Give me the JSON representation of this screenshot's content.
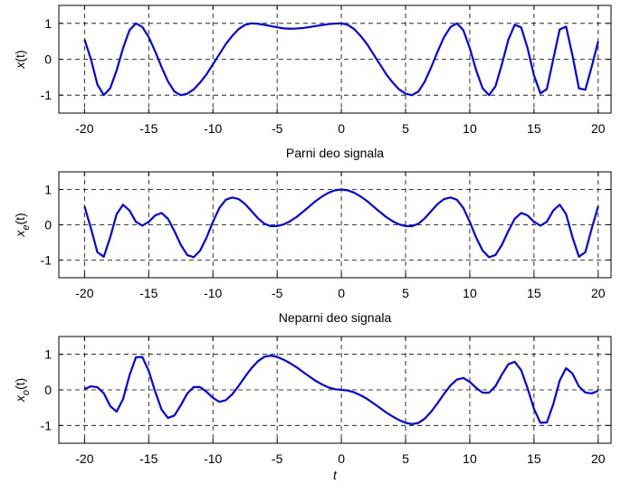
{
  "chart_data": [
    {
      "type": "line",
      "ylabel": {
        "text": "x",
        "suffix": "(t)"
      },
      "x": [
        -20,
        -19.5,
        -19,
        -18.5,
        -18,
        -17.5,
        -17,
        -16.5,
        -16,
        -15.5,
        -15,
        -14.5,
        -14,
        -13.5,
        -13,
        -12.5,
        -12,
        -11.5,
        -11,
        -10.5,
        -10,
        -9.5,
        -9,
        -8.5,
        -8,
        -7.5,
        -7,
        -6.5,
        -6,
        -5.5,
        -5,
        -4.5,
        -4,
        -3.5,
        -3,
        -2.5,
        -2,
        -1.5,
        -1,
        -0.5,
        0,
        0.5,
        1,
        1.5,
        2,
        2.5,
        3,
        3.5,
        4,
        4.5,
        5,
        5.5,
        6,
        6.5,
        7,
        7.5,
        8,
        8.5,
        9,
        9.5,
        10,
        10.5,
        11,
        11.5,
        12,
        12.5,
        13,
        13.5,
        14,
        14.5,
        15,
        15.5,
        16,
        16.5,
        17,
        17.5,
        18,
        18.5,
        19,
        19.5,
        20
      ],
      "series": [
        {
          "color": "#0000ff",
          "values": [
            0.55,
            0,
            -0.7,
            -1,
            -0.81,
            -0.31,
            0.31,
            0.81,
            1,
            0.9,
            0.62,
            0.22,
            -0.22,
            -0.62,
            -0.9,
            -1,
            -0.96,
            -0.84,
            -0.65,
            -0.42,
            -0.14,
            0.14,
            0.42,
            0.65,
            0.84,
            0.96,
            1,
            0.99,
            0.96,
            0.925,
            0.89,
            0.86,
            0.85,
            0.856,
            0.872,
            0.896,
            0.925,
            0.954,
            0.978,
            0.994,
            1,
            0.96,
            0.84,
            0.65,
            0.42,
            0.14,
            -0.14,
            -0.42,
            -0.65,
            -0.84,
            -0.96,
            -1,
            -0.9,
            -0.62,
            -0.22,
            0.22,
            0.62,
            0.9,
            1,
            0.81,
            0.31,
            -0.31,
            -0.81,
            -1,
            -0.755,
            -0.14,
            0.54,
            0.96,
            0.89,
            0.31,
            -0.45,
            -0.95,
            -0.83,
            0,
            0.83,
            0.91,
            0.1,
            -0.81,
            -0.85,
            -0.2,
            0.5
          ]
        }
      ],
      "xlim": [
        -22,
        21
      ],
      "xticks": [
        -20,
        -15,
        -10,
        -5,
        0,
        5,
        10,
        15,
        20
      ],
      "ylim": [
        -1.5,
        1.5
      ],
      "yticks": [
        -1,
        0,
        1
      ],
      "grid": true
    },
    {
      "type": "line",
      "title": "Parni deo signala",
      "ylabel": {
        "text": "x",
        "sub": "e",
        "suffix": "(t)"
      },
      "x": [
        -20,
        -19.5,
        -19,
        -18.5,
        -18,
        -17.5,
        -17,
        -16.5,
        -16,
        -15.5,
        -15,
        -14.5,
        -14,
        -13.5,
        -13,
        -12.5,
        -12,
        -11.5,
        -11,
        -10.5,
        -10,
        -9.5,
        -9,
        -8.5,
        -8,
        -7.5,
        -7,
        -6.5,
        -6,
        -5.5,
        -5,
        -4.5,
        -4,
        -3.5,
        -3,
        -2.5,
        -2,
        -1.5,
        -1,
        -0.5,
        0,
        0.5,
        1,
        1.5,
        2,
        2.5,
        3,
        3.5,
        4,
        4.5,
        5,
        5.5,
        6,
        6.5,
        7,
        7.5,
        8,
        8.5,
        9,
        9.5,
        10,
        10.5,
        11,
        11.5,
        12,
        12.5,
        13,
        13.5,
        14,
        14.5,
        15,
        15.5,
        16,
        16.5,
        17,
        17.5,
        18,
        18.5,
        19,
        19.5,
        20
      ],
      "series": [
        {
          "color": "#0000ff",
          "values": [
            0.525,
            -0.1,
            -0.775,
            -0.905,
            -0.355,
            0.3,
            0.57,
            0.405,
            0.085,
            -0.025,
            0.085,
            0.265,
            0.335,
            0.17,
            -0.18,
            -0.57,
            -0.858,
            -0.92,
            -0.73,
            -0.365,
            0.085,
            0.475,
            0.71,
            0.775,
            0.73,
            0.59,
            0.39,
            0.185,
            0.03,
            -0.038,
            -0.035,
            0.01,
            0.1,
            0.218,
            0.366,
            0.518,
            0.673,
            0.802,
            0.909,
            0.977,
            1,
            0.977,
            0.909,
            0.802,
            0.673,
            0.518,
            0.366,
            0.218,
            0.1,
            0.01,
            -0.035,
            -0.038,
            0.03,
            0.185,
            0.39,
            0.59,
            0.73,
            0.775,
            0.71,
            0.475,
            0.085,
            -0.365,
            -0.73,
            -0.92,
            -0.858,
            -0.57,
            -0.18,
            0.17,
            0.335,
            0.265,
            0.085,
            -0.025,
            0.085,
            0.405,
            0.57,
            0.3,
            -0.355,
            -0.905,
            -0.775,
            -0.1,
            0.525
          ]
        }
      ],
      "xlim": [
        -22,
        21
      ],
      "xticks": [
        -20,
        -15,
        -10,
        -5,
        0,
        5,
        10,
        15,
        20
      ],
      "ylim": [
        -1.5,
        1.5
      ],
      "yticks": [
        -1,
        0,
        1
      ],
      "grid": true
    },
    {
      "type": "line",
      "title": "Neparni deo  signala",
      "xlabel": "t",
      "ylabel": {
        "text": "x",
        "sub": "o",
        "suffix": "(t)"
      },
      "x": [
        -20,
        -19.5,
        -19,
        -18.5,
        -18,
        -17.5,
        -17,
        -16.5,
        -16,
        -15.5,
        -15,
        -14.5,
        -14,
        -13.5,
        -13,
        -12.5,
        -12,
        -11.5,
        -11,
        -10.5,
        -10,
        -9.5,
        -9,
        -8.5,
        -8,
        -7.5,
        -7,
        -6.5,
        -6,
        -5.5,
        -5,
        -4.5,
        -4,
        -3.5,
        -3,
        -2.5,
        -2,
        -1.5,
        -1,
        -0.5,
        0,
        0.5,
        1,
        1.5,
        2,
        2.5,
        3,
        3.5,
        4,
        4.5,
        5,
        5.5,
        6,
        6.5,
        7,
        7.5,
        8,
        8.5,
        9,
        9.5,
        10,
        10.5,
        11,
        11.5,
        12,
        12.5,
        13,
        13.5,
        14,
        14.5,
        15,
        15.5,
        16,
        16.5,
        17,
        17.5,
        18,
        18.5,
        19,
        19.5,
        20
      ],
      "series": [
        {
          "color": "#0000ff",
          "values": [
            0.025,
            0.1,
            0.075,
            -0.095,
            -0.455,
            -0.61,
            -0.26,
            0.405,
            0.915,
            0.925,
            0.535,
            -0.045,
            -0.555,
            -0.79,
            -0.72,
            -0.43,
            -0.103,
            0.08,
            0.08,
            -0.055,
            -0.225,
            -0.335,
            -0.29,
            -0.125,
            0.11,
            0.37,
            0.61,
            0.805,
            0.93,
            0.963,
            0.925,
            0.85,
            0.75,
            0.638,
            0.506,
            0.378,
            0.253,
            0.152,
            0.069,
            0.017,
            0,
            -0.017,
            -0.069,
            -0.152,
            -0.253,
            -0.378,
            -0.506,
            -0.638,
            -0.75,
            -0.85,
            -0.925,
            -0.963,
            -0.93,
            -0.805,
            -0.61,
            -0.37,
            -0.11,
            0.125,
            0.29,
            0.335,
            0.225,
            0.055,
            -0.08,
            -0.08,
            0.103,
            0.43,
            0.72,
            0.79,
            0.555,
            0.045,
            -0.535,
            -0.925,
            -0.915,
            -0.405,
            0.26,
            0.61,
            0.455,
            0.095,
            -0.075,
            -0.1,
            -0.025
          ]
        }
      ],
      "xlim": [
        -22,
        21
      ],
      "xticks": [
        -20,
        -15,
        -10,
        -5,
        0,
        5,
        10,
        15,
        20
      ],
      "ylim": [
        -1.5,
        1.5
      ],
      "yticks": [
        -1,
        0,
        1
      ],
      "grid": true
    }
  ]
}
